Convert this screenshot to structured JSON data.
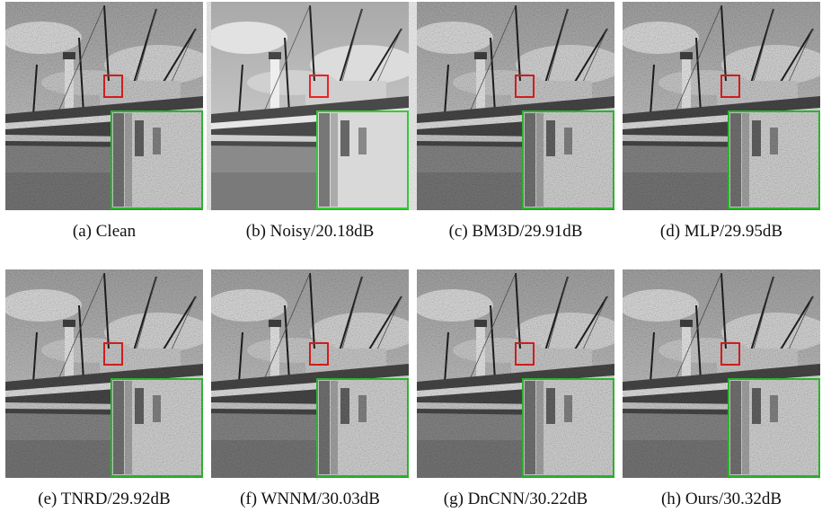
{
  "figures": [
    {
      "caption": "(a) Clean"
    },
    {
      "caption": "(b) Noisy/20.18dB"
    },
    {
      "caption": "(c) BM3D/29.91dB"
    },
    {
      "caption": "(d) MLP/29.95dB"
    },
    {
      "caption": "(e) TNRD/29.92dB"
    },
    {
      "caption": "(f) WNNM/30.03dB"
    },
    {
      "caption": "(g) DnCNN/30.22dB"
    },
    {
      "caption": "(h) Ours/30.32dB"
    }
  ]
}
